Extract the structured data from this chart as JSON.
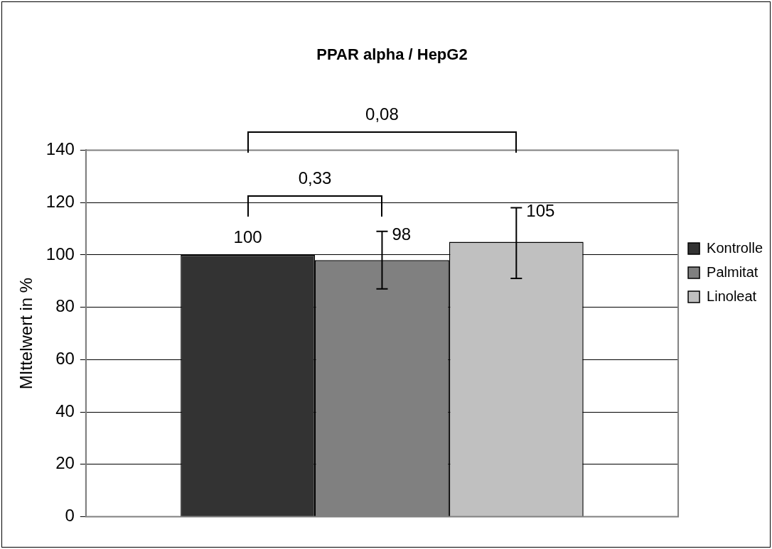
{
  "chart_data": {
    "type": "bar",
    "title": "PPAR alpha / HepG2",
    "ylabel": "MIttelwert in %",
    "categories": [
      null
    ],
    "series": [
      {
        "name": "Kontrolle",
        "color": "#333333",
        "values": [
          100
        ],
        "errors": [
          null
        ]
      },
      {
        "name": "Palmitat",
        "color": "#808080",
        "values": [
          98
        ],
        "errors": [
          [
            87,
            109
          ]
        ]
      },
      {
        "name": "Linoleat",
        "color": "#c0c0c0",
        "values": [
          105
        ],
        "errors": [
          [
            91,
            118
          ]
        ]
      }
    ],
    "ylim": [
      0,
      140
    ],
    "yticks": [
      0,
      20,
      40,
      60,
      80,
      100,
      120,
      140
    ],
    "grid": "y",
    "legend": "right",
    "data_labels": true,
    "annotations": [
      "0,33",
      "0,08"
    ]
  }
}
